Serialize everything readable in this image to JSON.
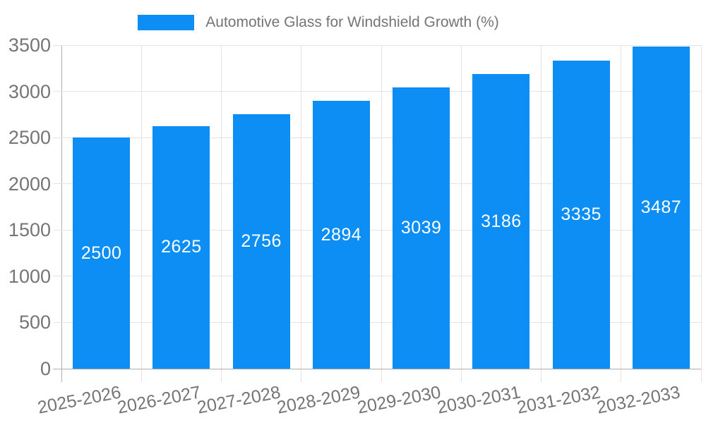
{
  "chart_data": {
    "type": "bar",
    "title": "Automotive Glass for Windshield Growth (%)",
    "legend_position": "top-center",
    "categories": [
      "2025-2026",
      "2026-2027",
      "2027-2028",
      "2028-2029",
      "2029-2030",
      "2030-2031",
      "2031-2032",
      "2032-2033"
    ],
    "values": [
      2500,
      2625,
      2756,
      2894,
      3039,
      3186,
      3335,
      3487
    ],
    "xlabel": "",
    "ylabel": "",
    "ylim": [
      0,
      3500
    ],
    "yticks": [
      0,
      500,
      1000,
      1500,
      2000,
      2500,
      3000,
      3500
    ],
    "grid": true,
    "bar_labels_inside": true,
    "colors": {
      "bar": "#0d8ef4",
      "bar_label": "#ffffff",
      "axis_text": "#757575",
      "gridline": "#e3e3e3",
      "axis_line": "#b0b0b0",
      "background": "#ffffff"
    }
  }
}
